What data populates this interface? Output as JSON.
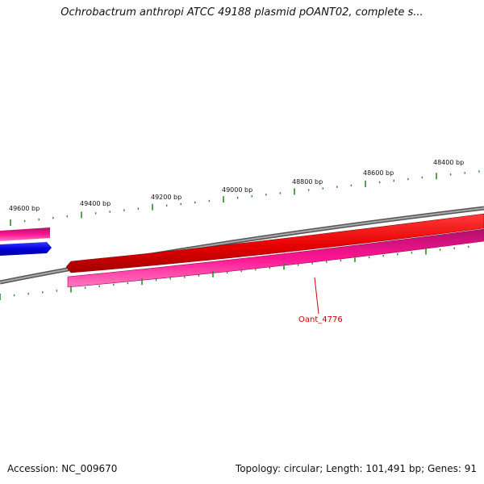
{
  "title": "Ochrobactrum anthropi ATCC 49188 plasmid pOANT02, complete s...",
  "footer": {
    "accession": "Accession: NC_009670",
    "summary": "Topology: circular; Length: 101,491 bp; Genes: 91"
  },
  "map": {
    "scale_labels": [
      "49600 bp",
      "49400 bp",
      "49200 bp",
      "49000 bp",
      "48800 bp",
      "48600 bp",
      "48400 bp"
    ],
    "gene_labels": [
      "Oant_4776"
    ],
    "colors": {
      "backbone": "#808080",
      "forward_gene": "#e60000",
      "reverse_gene": "#ff1493",
      "other_gene": "#0000dd",
      "ticks": "#2a8a2a",
      "gene_label": "#cc0000"
    }
  }
}
